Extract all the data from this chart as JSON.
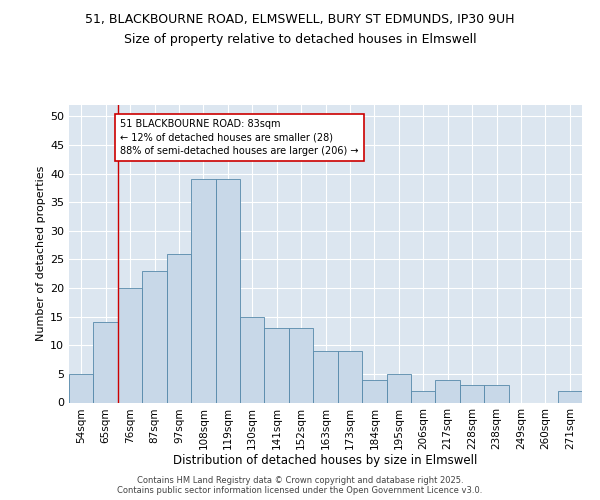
{
  "title1": "51, BLACKBOURNE ROAD, ELMSWELL, BURY ST EDMUNDS, IP30 9UH",
  "title2": "Size of property relative to detached houses in Elmswell",
  "xlabel": "Distribution of detached houses by size in Elmswell",
  "ylabel": "Number of detached properties",
  "categories": [
    "54sqm",
    "65sqm",
    "76sqm",
    "87sqm",
    "97sqm",
    "108sqm",
    "119sqm",
    "130sqm",
    "141sqm",
    "152sqm",
    "163sqm",
    "173sqm",
    "184sqm",
    "195sqm",
    "206sqm",
    "217sqm",
    "228sqm",
    "238sqm",
    "249sqm",
    "260sqm",
    "271sqm"
  ],
  "values": [
    5,
    14,
    20,
    23,
    26,
    39,
    39,
    15,
    13,
    13,
    9,
    9,
    4,
    5,
    2,
    4,
    3,
    3,
    0,
    0,
    2
  ],
  "bar_color": "#c8d8e8",
  "bar_edge_color": "#5588aa",
  "annotation_text": "51 BLACKBOURNE ROAD: 83sqm\n← 12% of detached houses are smaller (28)\n88% of semi-detached houses are larger (206) →",
  "annotation_box_color": "#ffffff",
  "annotation_box_edge_color": "#cc0000",
  "vline_color": "#cc0000",
  "vline_x": 1.5,
  "ylim": [
    0,
    52
  ],
  "yticks": [
    0,
    5,
    10,
    15,
    20,
    25,
    30,
    35,
    40,
    45,
    50
  ],
  "background_color": "#dce6f0",
  "footer": "Contains HM Land Registry data © Crown copyright and database right 2025.\nContains public sector information licensed under the Open Government Licence v3.0.",
  "title1_fontsize": 9,
  "title2_fontsize": 9,
  "xlabel_fontsize": 8.5,
  "ylabel_fontsize": 8,
  "annotation_fontsize": 7,
  "tick_fontsize": 7.5,
  "ytick_fontsize": 8,
  "footer_fontsize": 6
}
